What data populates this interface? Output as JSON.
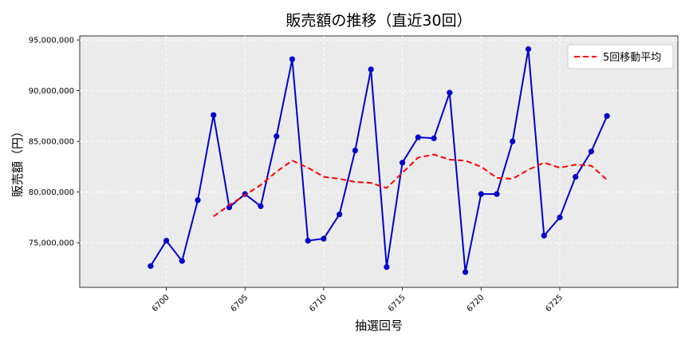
{
  "chart_data": {
    "type": "line",
    "title": "販売額の推移（直近30回）",
    "xlabel": "抽選回号",
    "ylabel": "販売額（円）",
    "x": [
      6699,
      6700,
      6701,
      6702,
      6703,
      6704,
      6705,
      6706,
      6707,
      6708,
      6709,
      6710,
      6711,
      6712,
      6713,
      6714,
      6715,
      6716,
      6717,
      6718,
      6719,
      6720,
      6721,
      6722,
      6723,
      6724,
      6725,
      6726,
      6727,
      6728
    ],
    "xlim": [
      6694.5,
      6732.5
    ],
    "ylim": [
      70600000,
      95400000
    ],
    "x_ticks": [
      6700,
      6705,
      6710,
      6715,
      6720,
      6725
    ],
    "x_tick_labels": [
      "6700",
      "6705",
      "6710",
      "6715",
      "6720",
      "6725"
    ],
    "y_ticks": [
      75000000,
      80000000,
      85000000,
      90000000,
      95000000
    ],
    "y_tick_labels": [
      "75,000,000",
      "80,000,000",
      "85,000,000",
      "90,000,000",
      "95,000,000"
    ],
    "grid": true,
    "legend_position": "top-right",
    "series": [
      {
        "name": "",
        "color": "#0000cc",
        "style": "solid",
        "markers": true,
        "values": [
          72700000,
          75200000,
          73200000,
          79200000,
          87600000,
          78500000,
          79800000,
          78600000,
          85500000,
          93100000,
          75200000,
          75400000,
          77800000,
          84100000,
          92100000,
          72600000,
          82900000,
          85400000,
          85300000,
          89800000,
          72100000,
          79800000,
          79800000,
          85000000,
          94100000,
          75700000,
          77500000,
          81500000,
          84000000,
          87500000
        ]
      },
      {
        "name": "5回移動平均",
        "color": "#ff0000",
        "style": "dashed",
        "markers": false,
        "values": [
          null,
          null,
          null,
          null,
          77600000,
          78700000,
          79700000,
          80700000,
          82000000,
          83100000,
          82400000,
          81500000,
          81300000,
          81000000,
          80900000,
          80400000,
          81900000,
          83400000,
          83700000,
          83200000,
          83100000,
          82500000,
          81400000,
          81300000,
          82200000,
          82900000,
          82400000,
          82700000,
          82600000,
          81200000
        ]
      }
    ]
  }
}
